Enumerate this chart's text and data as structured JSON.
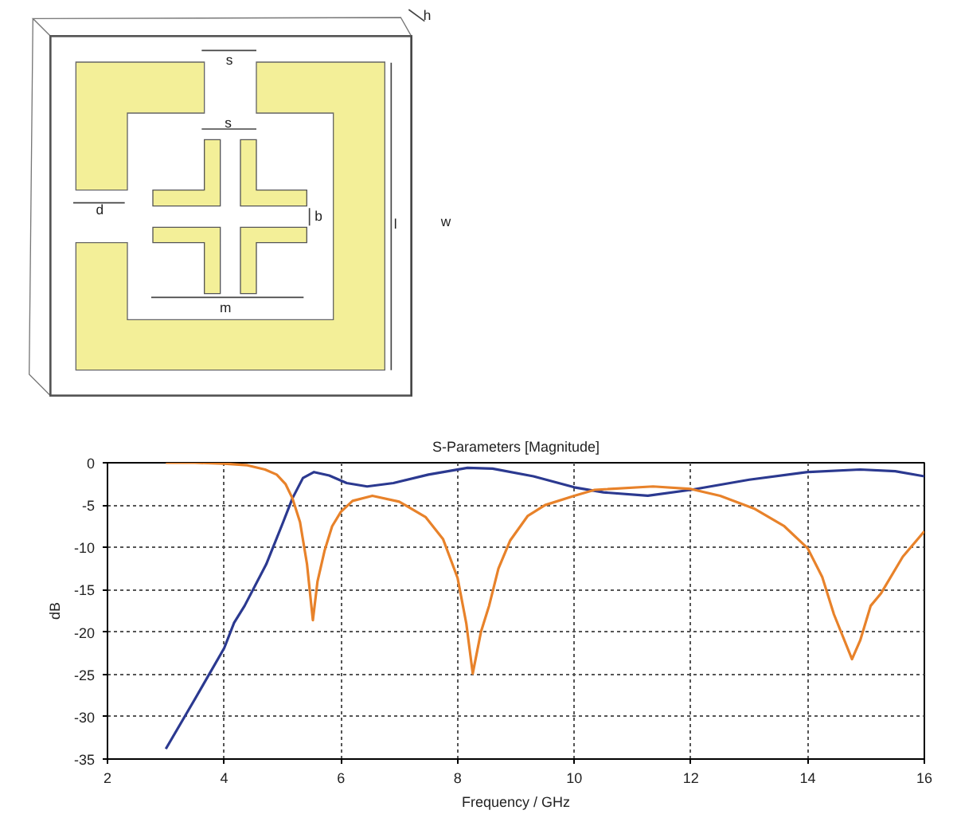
{
  "chart_data": [
    {
      "type": "other",
      "annotations": [
        "h",
        "s",
        "s",
        "d",
        "b",
        "l",
        "w",
        "m"
      ]
    },
    {
      "type": "line",
      "title": "S-Parameters [Magnitude]",
      "xlabel": "Frequency / GHz",
      "ylabel": "dB",
      "xlim": [
        2,
        16
      ],
      "ylim": [
        -35,
        0
      ],
      "xticks": [
        2,
        4,
        6,
        8,
        10,
        12,
        14,
        16
      ],
      "yticks": [
        -35,
        -30,
        -25,
        -20,
        -15,
        -10,
        -5,
        0
      ],
      "grid": true,
      "series": [
        {
          "color": "#2b3990",
          "x": [
            3.0,
            3.5,
            4.0,
            4.17,
            4.35,
            4.72,
            5.0,
            5.17,
            5.35,
            5.54,
            5.8,
            6.1,
            6.45,
            6.9,
            7.5,
            8.17,
            8.6,
            9.3,
            10.0,
            10.5,
            11.26,
            12.0,
            13.0,
            14.0,
            14.9,
            15.5,
            16.0
          ],
          "values": [
            -33.8,
            -27.9,
            -21.9,
            -18.9,
            -16.9,
            -12.0,
            -7.2,
            -4.2,
            -1.8,
            -1.1,
            -1.5,
            -2.4,
            -2.8,
            -2.4,
            -1.4,
            -0.6,
            -0.7,
            -1.6,
            -2.9,
            -3.5,
            -3.9,
            -3.2,
            -2.0,
            -1.1,
            -0.8,
            -1.0,
            -1.6
          ]
        },
        {
          "color": "#e8822a",
          "x": [
            3.0,
            3.5,
            4.0,
            4.4,
            4.7,
            4.9,
            5.05,
            5.17,
            5.3,
            5.42,
            5.52,
            5.6,
            5.72,
            5.85,
            6.0,
            6.2,
            6.54,
            7.0,
            7.45,
            7.75,
            8.0,
            8.15,
            8.26,
            8.4,
            8.54,
            8.7,
            8.9,
            9.2,
            9.5,
            10.0,
            10.35,
            11.35,
            12.0,
            12.5,
            13.08,
            13.6,
            14.0,
            14.25,
            14.45,
            14.76,
            14.9,
            15.08,
            15.26,
            15.63,
            16.0
          ],
          "values": [
            0,
            0,
            -0.1,
            -0.3,
            -0.8,
            -1.4,
            -2.5,
            -4.2,
            -7.0,
            -12.0,
            -18.6,
            -14.0,
            -10.4,
            -7.5,
            -5.8,
            -4.5,
            -3.9,
            -4.6,
            -6.4,
            -9.0,
            -13.6,
            -19.0,
            -24.9,
            -20.0,
            -16.9,
            -12.5,
            -9.2,
            -6.3,
            -5.0,
            -3.9,
            -3.2,
            -2.8,
            -3.1,
            -3.9,
            -5.4,
            -7.5,
            -10.1,
            -13.5,
            -17.9,
            -23.2,
            -21.0,
            -16.9,
            -15.4,
            -11.1,
            -8.1
          ]
        }
      ]
    }
  ]
}
